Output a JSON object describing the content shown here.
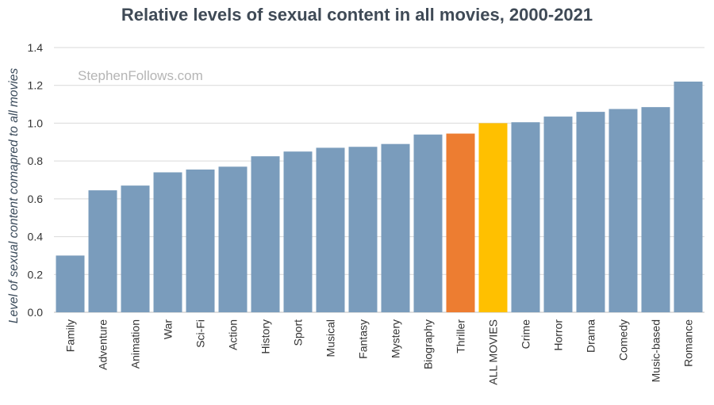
{
  "chart_data": {
    "type": "bar",
    "title": "Relative levels of sexual content in all movies, 2000-2021",
    "ylabel": "Level of sexual content comapred to all movies",
    "xlabel": "",
    "watermark": "StephenFollows.com",
    "ylim": [
      0,
      1.4
    ],
    "yticks": [
      "0.0",
      "0.2",
      "0.4",
      "0.6",
      "0.8",
      "1.0",
      "1.2",
      "1.4"
    ],
    "grid": true,
    "categories": [
      "Family",
      "Adventure",
      "Animation",
      "War",
      "Sci-Fi",
      "Action",
      "History",
      "Sport",
      "Musical",
      "Fantasy",
      "Mystery",
      "Biography",
      "Thriller",
      "ALL MOVIES",
      "Crime",
      "Horror",
      "Drama",
      "Comedy",
      "Music-based",
      "Romance"
    ],
    "values": [
      0.3,
      0.645,
      0.67,
      0.74,
      0.755,
      0.77,
      0.825,
      0.85,
      0.87,
      0.875,
      0.89,
      0.94,
      0.945,
      1.0,
      1.005,
      1.035,
      1.06,
      1.075,
      1.085,
      1.22
    ],
    "colors": {
      "default": "#7a9cbc",
      "Thriller": "#ed7d31",
      "ALL MOVIES": "#ffc000",
      "grid": "#d9d9d9",
      "title": "#3f4a56"
    }
  }
}
